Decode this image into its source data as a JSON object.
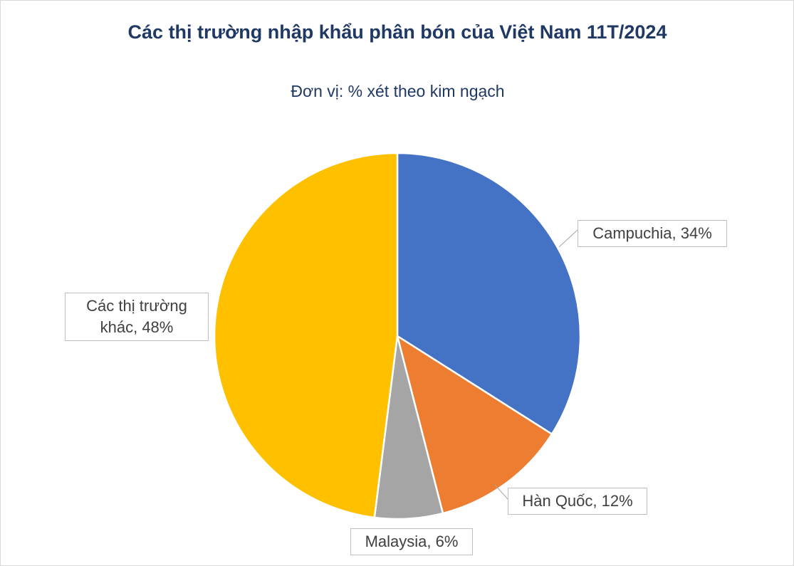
{
  "chart_data": {
    "type": "pie",
    "title": "Các thị trường nhập khẩu phân bón của Việt Nam 11T/2024",
    "subtitle": "Đơn vị: % xét theo kim ngạch",
    "values": [
      34,
      12,
      6,
      48
    ],
    "value_labels": [
      "Campuchia, 34%",
      "Hàn Quốc, 12%",
      "Malaysia, 6%",
      "Các thị trường khác, 48%"
    ],
    "colors": [
      "#4472c4",
      "#ed7d31",
      "#a5a5a5",
      "#ffc000"
    ]
  }
}
